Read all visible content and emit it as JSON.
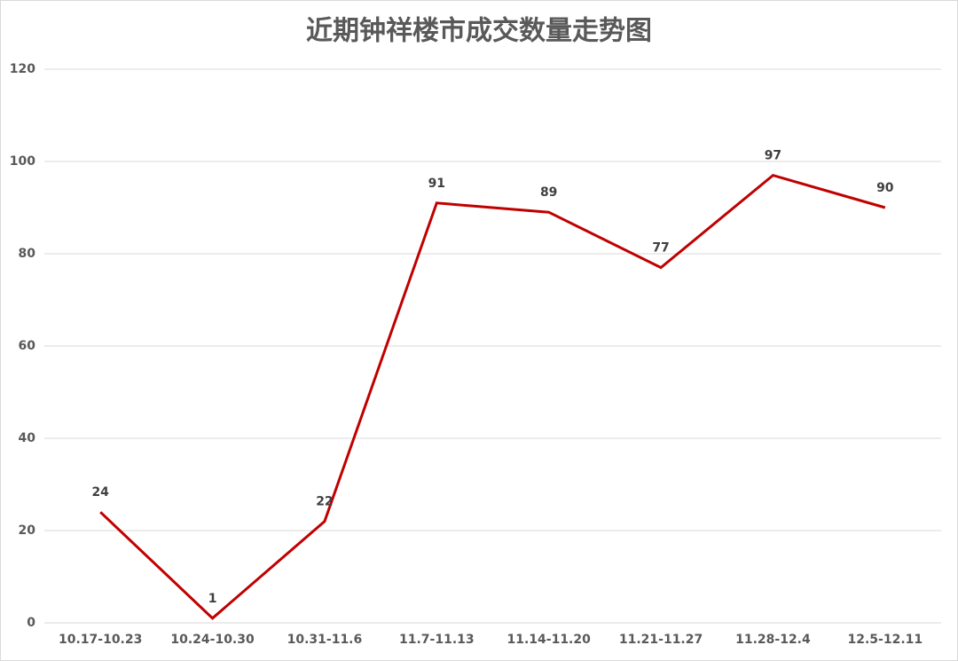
{
  "chart_data": {
    "type": "line",
    "title": "近期钟祥楼市成交数量走势图",
    "categories": [
      "10.17-10.23",
      "10.24-10.30",
      "10.31-11.6",
      "11.7-11.13",
      "11.14-11.20",
      "11.21-11.27",
      "11.28-12.4",
      "12.5-12.11"
    ],
    "values": [
      24,
      1,
      22,
      91,
      89,
      77,
      97,
      90
    ],
    "color": "#c00000",
    "ylim": [
      0,
      120
    ],
    "yticks": [
      0,
      20,
      40,
      60,
      80,
      100,
      120
    ],
    "grid": true
  }
}
